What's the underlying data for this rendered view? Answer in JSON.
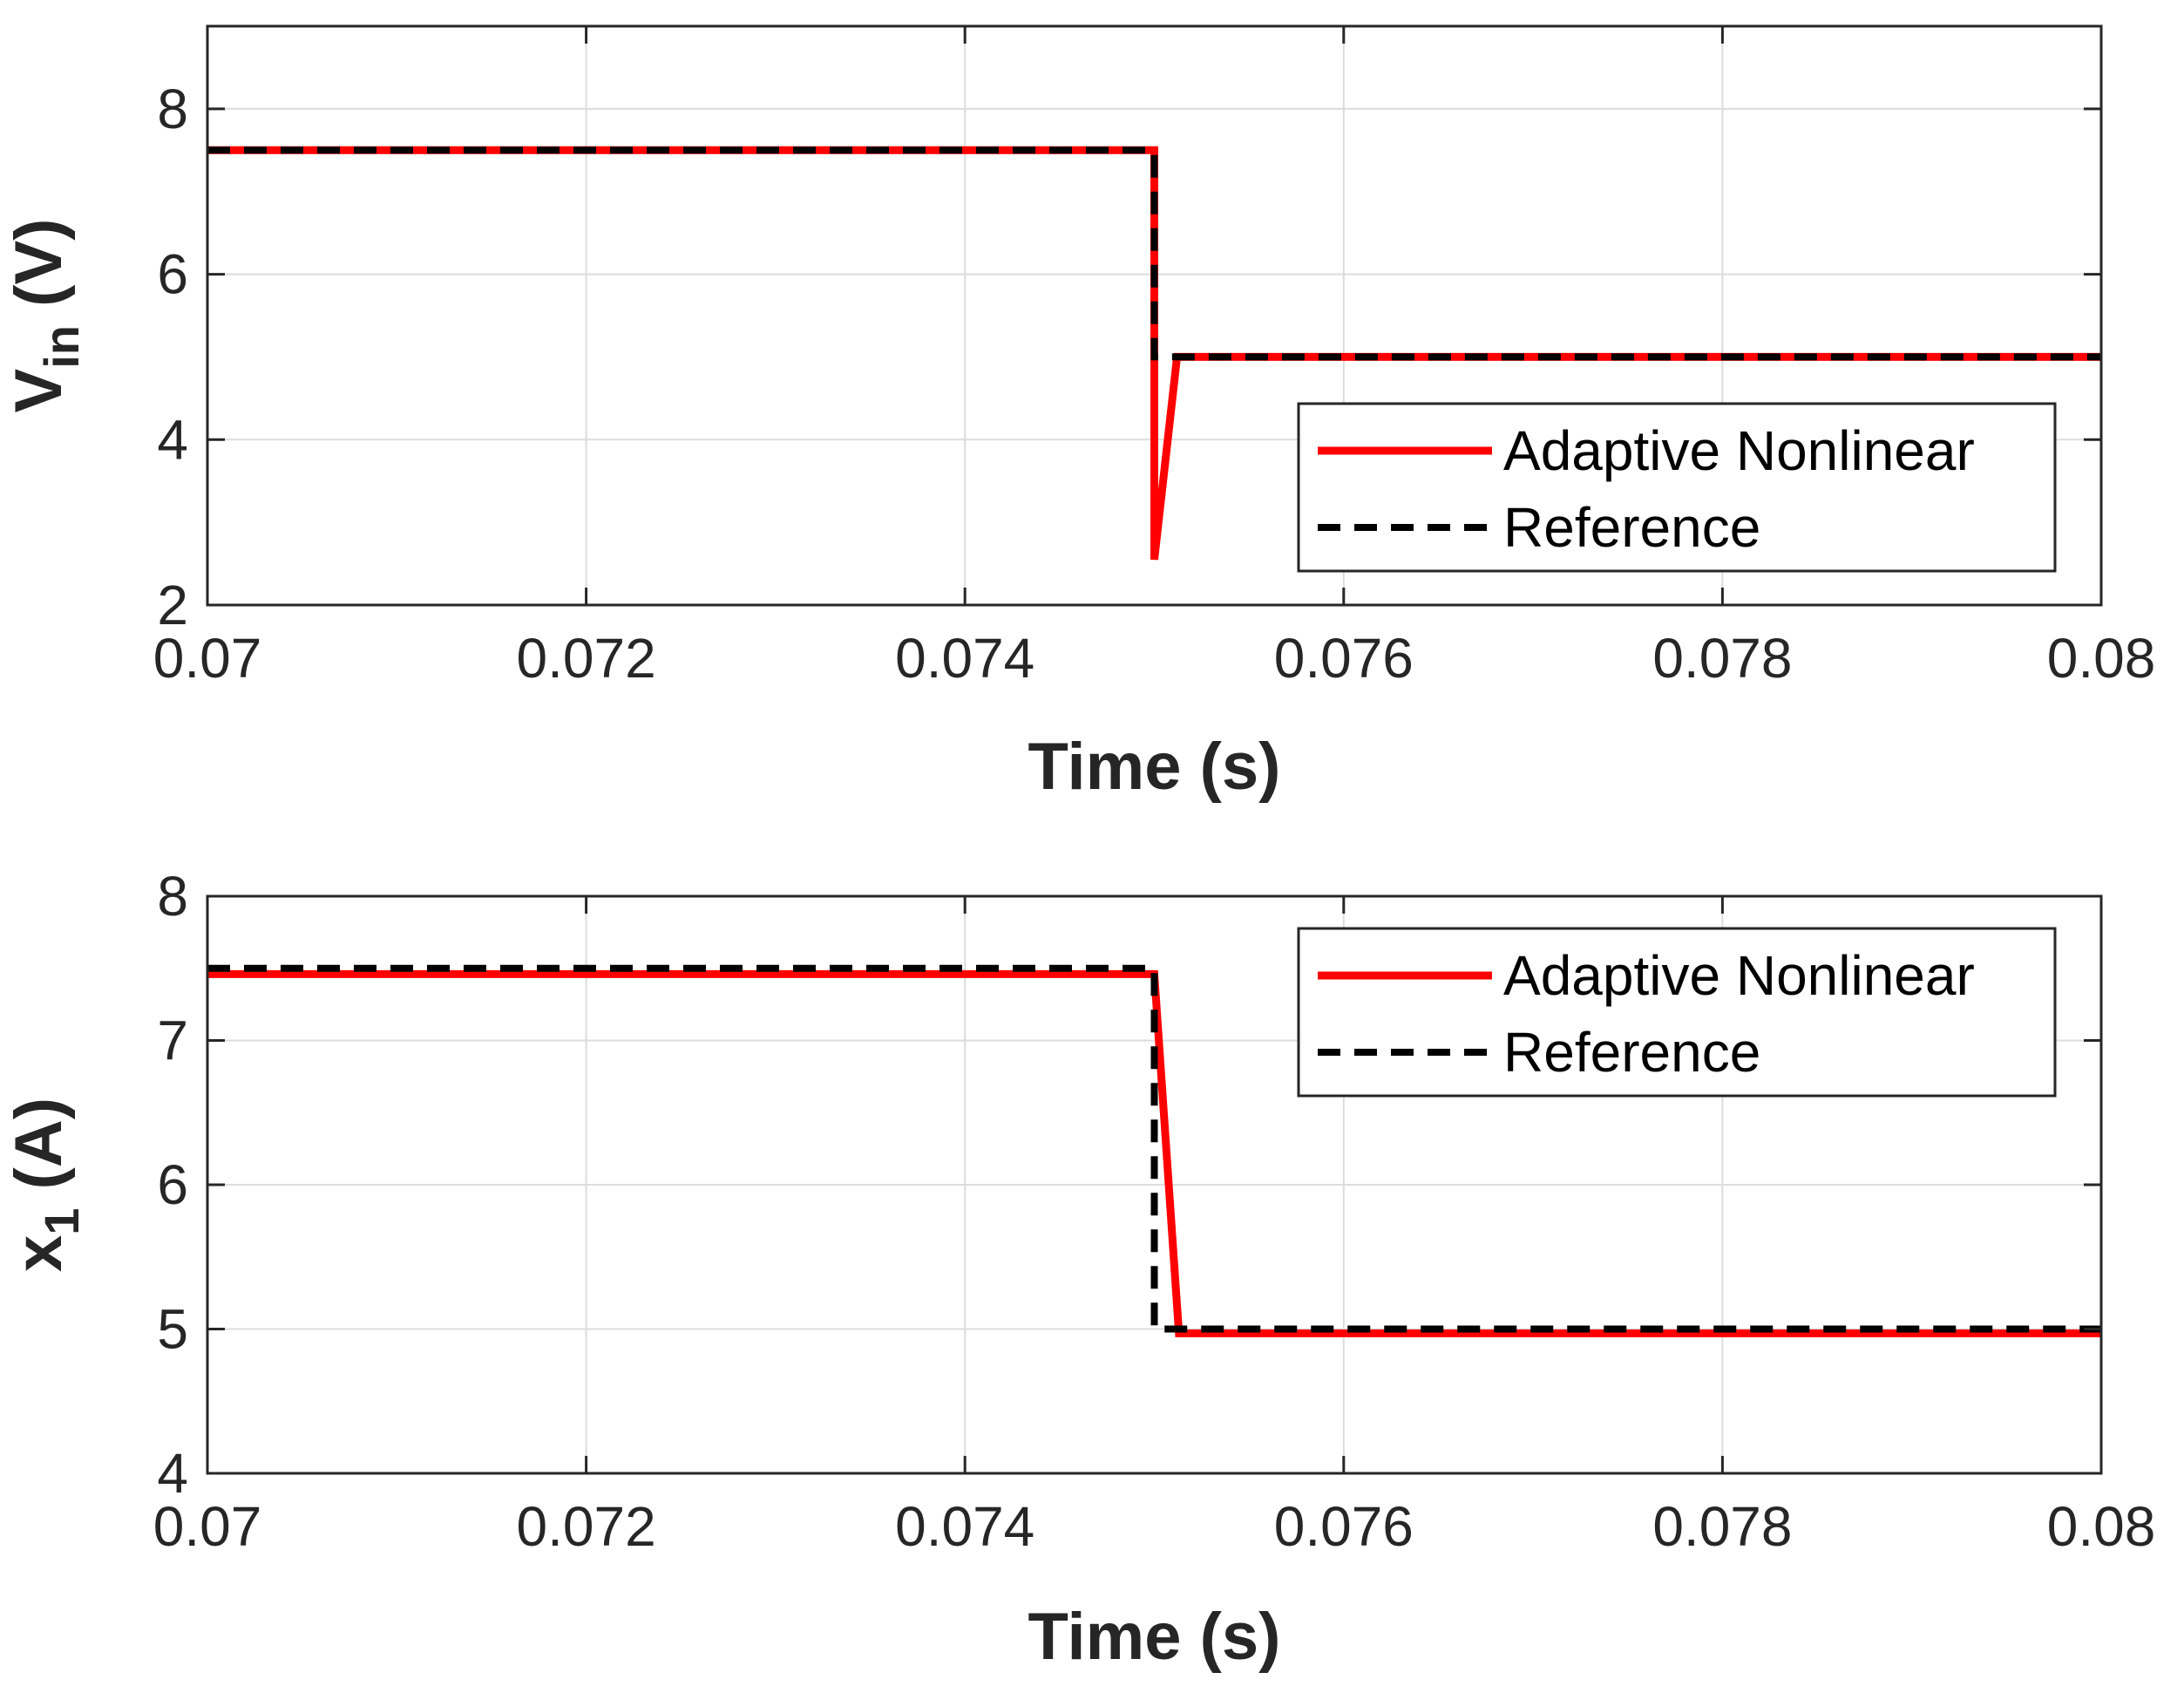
{
  "colors": {
    "adaptive": "#ff0000",
    "reference": "#000000",
    "grid": "#dcdcdc",
    "axis": "#262626"
  },
  "chart_data": [
    {
      "type": "line",
      "title": "",
      "xlabel": "Time (s)",
      "ylabel_main": "V",
      "ylabel_sub": "in",
      "ylabel_unit": " (V)",
      "xlim": [
        0.07,
        0.08
      ],
      "ylim": [
        2,
        9
      ],
      "xticks": [
        0.07,
        0.072,
        0.074,
        0.076,
        0.078,
        0.08
      ],
      "xtick_labels": [
        "0.07",
        "0.072",
        "0.074",
        "0.076",
        "0.078",
        "0.08"
      ],
      "yticks": [
        2,
        4,
        6,
        8
      ],
      "ytick_labels": [
        "2",
        "4",
        "6",
        "8"
      ],
      "grid": true,
      "legend_position": "bottom-right",
      "series": [
        {
          "name": "Adaptive Nonlinear",
          "style": "solid",
          "x": [
            0.07,
            0.075,
            0.075,
            0.07512,
            0.08
          ],
          "y": [
            7.5,
            7.5,
            2.55,
            5.0,
            5.0
          ]
        },
        {
          "name": "Reference",
          "style": "dashed",
          "x": [
            0.07,
            0.075,
            0.075,
            0.08
          ],
          "y": [
            7.5,
            7.5,
            5.0,
            5.0
          ]
        }
      ]
    },
    {
      "type": "line",
      "title": "",
      "xlabel": "Time (s)",
      "ylabel_main": "x",
      "ylabel_sub": "1",
      "ylabel_unit": " (A)",
      "xlim": [
        0.07,
        0.08
      ],
      "ylim": [
        4,
        8
      ],
      "xticks": [
        0.07,
        0.072,
        0.074,
        0.076,
        0.078,
        0.08
      ],
      "xtick_labels": [
        "0.07",
        "0.072",
        "0.074",
        "0.076",
        "0.078",
        "0.08"
      ],
      "yticks": [
        4,
        5,
        6,
        7,
        8
      ],
      "ytick_labels": [
        "4",
        "5",
        "6",
        "7",
        "8"
      ],
      "grid": true,
      "legend_position": "top-right",
      "series": [
        {
          "name": "Adaptive Nonlinear",
          "style": "solid",
          "x": [
            0.07,
            0.075,
            0.07513,
            0.08
          ],
          "y": [
            7.46,
            7.46,
            4.97,
            4.97
          ]
        },
        {
          "name": "Reference",
          "style": "dashed",
          "x": [
            0.07,
            0.075,
            0.075,
            0.08
          ],
          "y": [
            7.5,
            7.5,
            5.0,
            5.0
          ]
        }
      ]
    }
  ]
}
